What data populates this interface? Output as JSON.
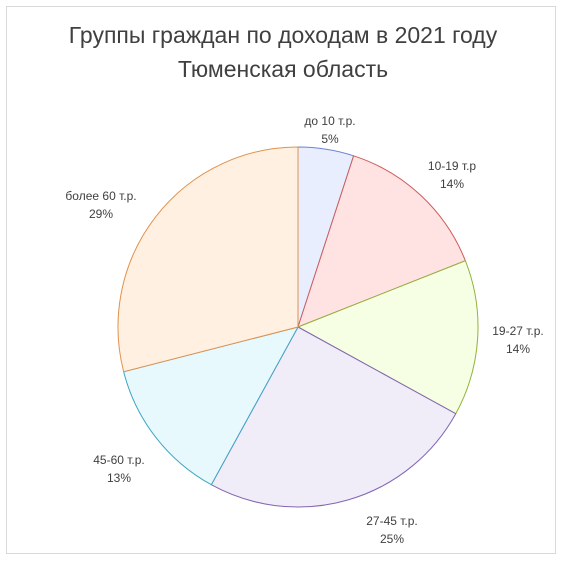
{
  "chart_data": {
    "type": "pie",
    "title": "Группы граждан по доходам в 2021 году",
    "subtitle": "Тюменская область",
    "slices": [
      {
        "label": "до 10 т.р.",
        "value": 5,
        "percent_label": "5%",
        "colors": [
          "#e8eefe",
          "#c5d5fb"
        ],
        "stroke": "#6c84d6"
      },
      {
        "label": "10-19 т.р",
        "value": 14,
        "percent_label": "14%",
        "colors": [
          "#ffe3e3",
          "#ffaaaa"
        ],
        "stroke": "#cf5c5c"
      },
      {
        "label": "19-27 т.р.",
        "value": 14,
        "percent_label": "14%",
        "colors": [
          "#f6ffe4",
          "#dbf5a6"
        ],
        "stroke": "#92b33c"
      },
      {
        "label": "27-45 т.р.",
        "value": 25,
        "percent_label": "25%",
        "colors": [
          "#f0ecf8",
          "#cfbfec"
        ],
        "stroke": "#8266b3"
      },
      {
        "label": "45-60 т.р.",
        "value": 13,
        "percent_label": "13%",
        "colors": [
          "#e8f9fe",
          "#aeeaf9"
        ],
        "stroke": "#3fa6c4"
      },
      {
        "label": "более 60 т.р.",
        "value": 29,
        "percent_label": "29%",
        "colors": [
          "#fff0e2",
          "#ffc898"
        ],
        "stroke": "#e0924d"
      }
    ]
  }
}
